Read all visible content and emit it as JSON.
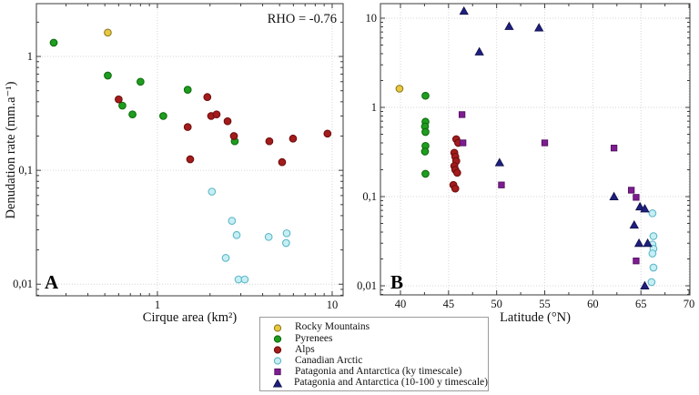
{
  "figure": {
    "background": "#ffffff"
  },
  "chart_data": [
    {
      "id": "A",
      "type": "scatter",
      "panel_label": "A",
      "annotation": "RHO = -0.76",
      "xlabel": "Cirque area (km²)",
      "ylabel": "Denudation rate (mm.a⁻¹)",
      "xscale": "log",
      "yscale": "log",
      "xrange_log10": [
        -0.6925,
        1.0627
      ],
      "yrange_log10": [
        -2.102,
        0.4639
      ],
      "grid": true,
      "xticks": [
        {
          "v": 1,
          "label": "1"
        },
        {
          "v": 10,
          "label": "10"
        }
      ],
      "yticks": [
        {
          "v": 1,
          "label": "1"
        },
        {
          "v": 0.1,
          "label": "0,1"
        },
        {
          "v": 0.01,
          "label": "0,01"
        }
      ],
      "xminor": [
        0.3,
        0.4,
        0.5,
        0.6,
        0.7,
        0.8,
        0.9,
        2,
        3,
        4,
        5,
        6,
        7,
        8,
        9
      ],
      "yminor": [
        0.008,
        0.009,
        0.02,
        0.03,
        0.04,
        0.05,
        0.06,
        0.07,
        0.08,
        0.09,
        0.2,
        0.3,
        0.4,
        0.5,
        0.6,
        0.7,
        0.8,
        0.9,
        2
      ],
      "series": [
        {
          "name": "Rocky Mountains",
          "marker": "circle",
          "fill": "#E9C83F",
          "stroke": "#8F7D22",
          "points": [
            [
              0.52,
              1.62
            ]
          ]
        },
        {
          "name": "Pyrenees",
          "marker": "circle",
          "fill": "#1E9E1E",
          "stroke": "#0F6A0F",
          "points": [
            [
              0.255,
              1.32
            ],
            [
              0.52,
              0.68
            ],
            [
              0.8,
              0.6
            ],
            [
              0.63,
              0.37
            ],
            [
              0.72,
              0.31
            ],
            [
              1.08,
              0.3
            ],
            [
              1.49,
              0.51
            ],
            [
              2.77,
              0.18
            ]
          ]
        },
        {
          "name": "Alps",
          "marker": "circle",
          "fill": "#A41C1C",
          "stroke": "#6E0E0E",
          "points": [
            [
              0.6,
              0.42
            ],
            [
              1.49,
              0.24
            ],
            [
              1.54,
              0.125
            ],
            [
              1.93,
              0.44
            ],
            [
              2.03,
              0.3
            ],
            [
              2.18,
              0.31
            ],
            [
              2.52,
              0.27
            ],
            [
              2.74,
              0.2
            ],
            [
              4.37,
              0.18
            ],
            [
              5.17,
              0.118
            ],
            [
              5.97,
              0.19
            ],
            [
              9.4,
              0.21
            ]
          ]
        },
        {
          "name": "Canadian Arctic",
          "marker": "circle",
          "fill": "#C6EFF4",
          "stroke": "#5FB7C8",
          "points": [
            [
              2.05,
              0.065
            ],
            [
              2.67,
              0.036
            ],
            [
              2.84,
              0.027
            ],
            [
              4.33,
              0.026
            ],
            [
              5.49,
              0.028
            ],
            [
              5.45,
              0.023
            ],
            [
              2.46,
              0.017
            ],
            [
              2.91,
              0.011
            ],
            [
              3.16,
              0.011
            ]
          ]
        }
      ]
    },
    {
      "id": "B",
      "type": "scatter",
      "panel_label": "B",
      "annotation": "",
      "xlabel": "Latitude (°N)",
      "ylabel": "",
      "xscale": "linear",
      "yscale": "log",
      "xlim": [
        37.92,
        70.09
      ],
      "yrange_log10": [
        -2.102,
        1.163
      ],
      "grid": true,
      "xticks": [
        {
          "v": 40,
          "label": "40"
        },
        {
          "v": 45,
          "label": "45"
        },
        {
          "v": 50,
          "label": "50"
        },
        {
          "v": 55,
          "label": "55"
        },
        {
          "v": 60,
          "label": "60"
        },
        {
          "v": 65,
          "label": "65"
        },
        {
          "v": 70,
          "label": "70"
        }
      ],
      "yticks": [
        {
          "v": 10,
          "label": "10"
        },
        {
          "v": 1,
          "label": "1"
        },
        {
          "v": 0.1,
          "label": "0,1"
        },
        {
          "v": 0.01,
          "label": "0,01"
        }
      ],
      "xminor": [
        42.5,
        47.5,
        52.5,
        57.5,
        62.5,
        67.5
      ],
      "yminor": [
        0.008,
        0.009,
        0.02,
        0.03,
        0.04,
        0.05,
        0.06,
        0.07,
        0.08,
        0.09,
        0.2,
        0.3,
        0.4,
        0.5,
        0.6,
        0.7,
        0.8,
        0.9,
        2,
        3,
        4,
        5,
        6,
        7,
        8,
        9
      ],
      "series": [
        {
          "name": "Rocky Mountains",
          "marker": "circle",
          "fill": "#E9C83F",
          "stroke": "#8F7D22",
          "points": [
            [
              39.9,
              1.62
            ]
          ]
        },
        {
          "name": "Pyrenees",
          "marker": "circle",
          "fill": "#1E9E1E",
          "stroke": "#0F6A0F",
          "points": [
            [
              42.6,
              1.35
            ],
            [
              42.6,
              0.69
            ],
            [
              42.55,
              0.61
            ],
            [
              42.6,
              0.53
            ],
            [
              42.6,
              0.37
            ],
            [
              42.55,
              0.32
            ],
            [
              42.6,
              0.18
            ]
          ]
        },
        {
          "name": "Alps",
          "marker": "circle",
          "fill": "#A41C1C",
          "stroke": "#6E0E0E",
          "points": [
            [
              45.8,
              0.44
            ],
            [
              46.0,
              0.4
            ],
            [
              45.6,
              0.31
            ],
            [
              45.7,
              0.28
            ],
            [
              45.8,
              0.25
            ],
            [
              45.6,
              0.22
            ],
            [
              45.7,
              0.2
            ],
            [
              45.9,
              0.185
            ],
            [
              45.5,
              0.135
            ],
            [
              45.7,
              0.123
            ]
          ]
        },
        {
          "name": "Canadian Arctic",
          "marker": "circle",
          "fill": "#C6EFF4",
          "stroke": "#5FB7C8",
          "points": [
            [
              66.2,
              0.065
            ],
            [
              66.3,
              0.036
            ],
            [
              66.2,
              0.029
            ],
            [
              66.3,
              0.026
            ],
            [
              66.2,
              0.023
            ],
            [
              66.3,
              0.016
            ],
            [
              66.1,
              0.011
            ]
          ]
        },
        {
          "name": "Patagonia and Antarctica (ky timescale)",
          "marker": "square",
          "fill": "#7D1D91",
          "stroke": "#531061",
          "points": [
            [
              46.4,
              0.83
            ],
            [
              46.5,
              0.4
            ],
            [
              55.0,
              0.4
            ],
            [
              62.2,
              0.35
            ],
            [
              50.5,
              0.135
            ],
            [
              64.0,
              0.118
            ],
            [
              64.5,
              0.098
            ],
            [
              64.5,
              0.019
            ]
          ]
        },
        {
          "name": "Patagonia and Antarctica (10-100 y timescale)",
          "marker": "triangle",
          "fill": "#1F1F80",
          "stroke": "#12124d",
          "points": [
            [
              46.6,
              12.0
            ],
            [
              48.2,
              4.2
            ],
            [
              51.3,
              8.1
            ],
            [
              54.4,
              7.8
            ],
            [
              50.3,
              0.24
            ],
            [
              62.2,
              0.1
            ],
            [
              64.9,
              0.077
            ],
            [
              65.4,
              0.073
            ],
            [
              64.3,
              0.048
            ],
            [
              64.8,
              0.03
            ],
            [
              65.7,
              0.03
            ],
            [
              65.4,
              0.01
            ]
          ]
        }
      ]
    }
  ],
  "legend": {
    "items": [
      {
        "label": "Rocky Mountains",
        "marker": "circle",
        "fill": "#E9C83F",
        "stroke": "#8F7D22"
      },
      {
        "label": "Pyrenees",
        "marker": "circle",
        "fill": "#1E9E1E",
        "stroke": "#0F6A0F"
      },
      {
        "label": "Alps",
        "marker": "circle",
        "fill": "#A41C1C",
        "stroke": "#6E0E0E"
      },
      {
        "label": "Canadian Arctic",
        "marker": "circle",
        "fill": "#C6EFF4",
        "stroke": "#5FB7C8"
      },
      {
        "label": "Patagonia and Antarctica (ky timescale)",
        "marker": "square",
        "fill": "#7D1D91",
        "stroke": "#531061"
      },
      {
        "label": "Patagonia and Antarctica (10-100 y timescale)",
        "marker": "triangle",
        "fill": "#1F1F80",
        "stroke": "#12124d"
      }
    ]
  }
}
